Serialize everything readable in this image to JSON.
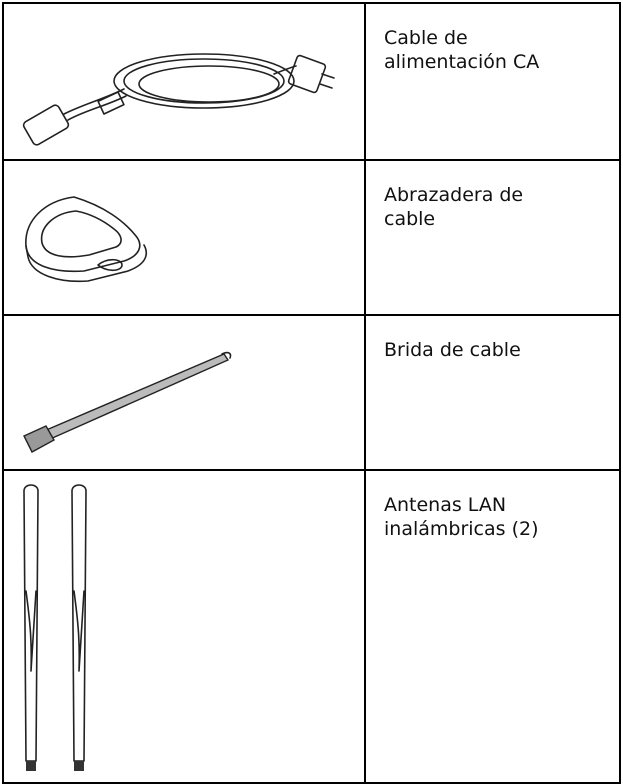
{
  "table": {
    "rows": [
      {
        "label": "Cable de alimentación CA"
      },
      {
        "label": "Abrazadera de cable"
      },
      {
        "label": "Brida de cable"
      },
      {
        "label": "Antenas LAN inalámbricas (2)"
      }
    ]
  }
}
